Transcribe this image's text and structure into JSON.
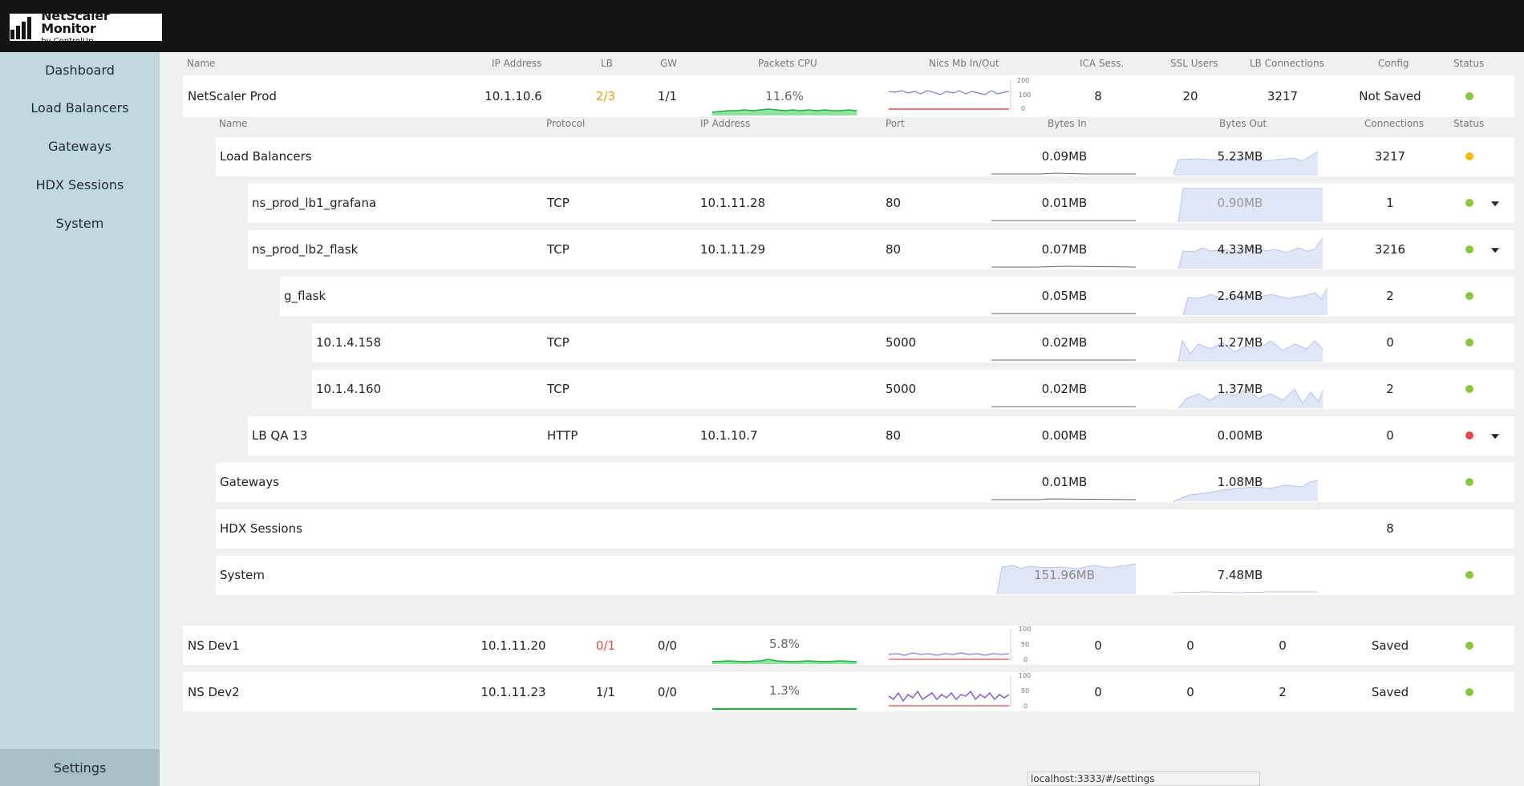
{
  "app": {
    "title": "NetScaler Monitor",
    "subtitle": "by ControlUp"
  },
  "nav": {
    "items": [
      "Dashboard",
      "Load Balancers",
      "Gateways",
      "HDX Sessions",
      "System"
    ],
    "settings": "Settings"
  },
  "colors": {
    "ok": "#8dc63f",
    "warn": "#f5b90d",
    "error": "#e84949",
    "lb_warn": "#f29c11",
    "lb_error": "#e84949"
  },
  "main_headers": [
    "Name",
    "IP Address",
    "LB",
    "GW",
    "Packets CPU",
    "Nics Mb In/Out",
    "ICA Sess.",
    "SSL Users",
    "LB Connections",
    "Config",
    "Status"
  ],
  "sub_headers": [
    "Name",
    "Protocol",
    "IP Address",
    "Port",
    "Bytes In",
    "Bytes Out",
    "Connections",
    "Status"
  ],
  "nic_axis": {
    "prod": [
      "200",
      "100",
      "0"
    ],
    "dev1": [
      "100",
      "50",
      "0"
    ],
    "dev2": [
      "100",
      "50",
      "0"
    ]
  },
  "netscalers": {
    "prod": {
      "name": "NetScaler Prod",
      "ip": "10.1.10.6",
      "lb": "2/3",
      "gw": "1/1",
      "cpu": "11.6%",
      "ica": "8",
      "ssl": "20",
      "lb_conn": "3217",
      "config": "Not Saved",
      "status": "ok"
    },
    "dev1": {
      "name": "NS Dev1",
      "ip": "10.1.11.20",
      "lb": "0/1",
      "gw": "0/0",
      "cpu": "5.8%",
      "ica": "0",
      "ssl": "0",
      "lb_conn": "0",
      "config": "Saved",
      "status": "ok"
    },
    "dev2": {
      "name": "NS Dev2",
      "ip": "10.1.11.23",
      "lb": "1/1",
      "gw": "0/0",
      "cpu": "1.3%",
      "ica": "0",
      "ssl": "0",
      "lb_conn": "2",
      "config": "Saved",
      "status": "ok"
    }
  },
  "detail": {
    "load_balancers": {
      "name": "Load Balancers",
      "bytes_in": "0.09MB",
      "bytes_out": "5.23MB",
      "connections": "3217",
      "status": "warn"
    },
    "lb1": {
      "name": "ns_prod_lb1_grafana",
      "protocol": "TCP",
      "ip": "10.1.11.28",
      "port": "80",
      "bytes_in": "0.01MB",
      "bytes_out": "0.90MB",
      "connections": "1",
      "status": "ok"
    },
    "lb2": {
      "name": "ns_prod_lb2_flask",
      "protocol": "TCP",
      "ip": "10.1.11.29",
      "port": "80",
      "bytes_in": "0.07MB",
      "bytes_out": "4.33MB",
      "connections": "3216",
      "status": "ok"
    },
    "g_flask": {
      "name": "g_flask",
      "bytes_in": "0.05MB",
      "bytes_out": "2.64MB",
      "connections": "2",
      "status": "ok"
    },
    "srv1": {
      "name": "10.1.4.158",
      "protocol": "TCP",
      "port": "5000",
      "bytes_in": "0.02MB",
      "bytes_out": "1.27MB",
      "connections": "0",
      "status": "ok"
    },
    "srv2": {
      "name": "10.1.4.160",
      "protocol": "TCP",
      "port": "5000",
      "bytes_in": "0.02MB",
      "bytes_out": "1.37MB",
      "connections": "2",
      "status": "ok"
    },
    "lbqa": {
      "name": "LB QA 13",
      "protocol": "HTTP",
      "ip": "10.1.10.7",
      "port": "80",
      "bytes_in": "0.00MB",
      "bytes_out": "0.00MB",
      "connections": "0",
      "status": "error"
    },
    "gateways": {
      "name": "Gateways",
      "bytes_in": "0.01MB",
      "bytes_out": "1.08MB",
      "status": "ok"
    },
    "hdx": {
      "name": "HDX Sessions",
      "connections": "8"
    },
    "system": {
      "name": "System",
      "bytes_in": "151.96MB",
      "bytes_out": "7.48MB",
      "status": "ok"
    }
  },
  "status_bar": {
    "url": "localhost:3333/#/settings"
  }
}
